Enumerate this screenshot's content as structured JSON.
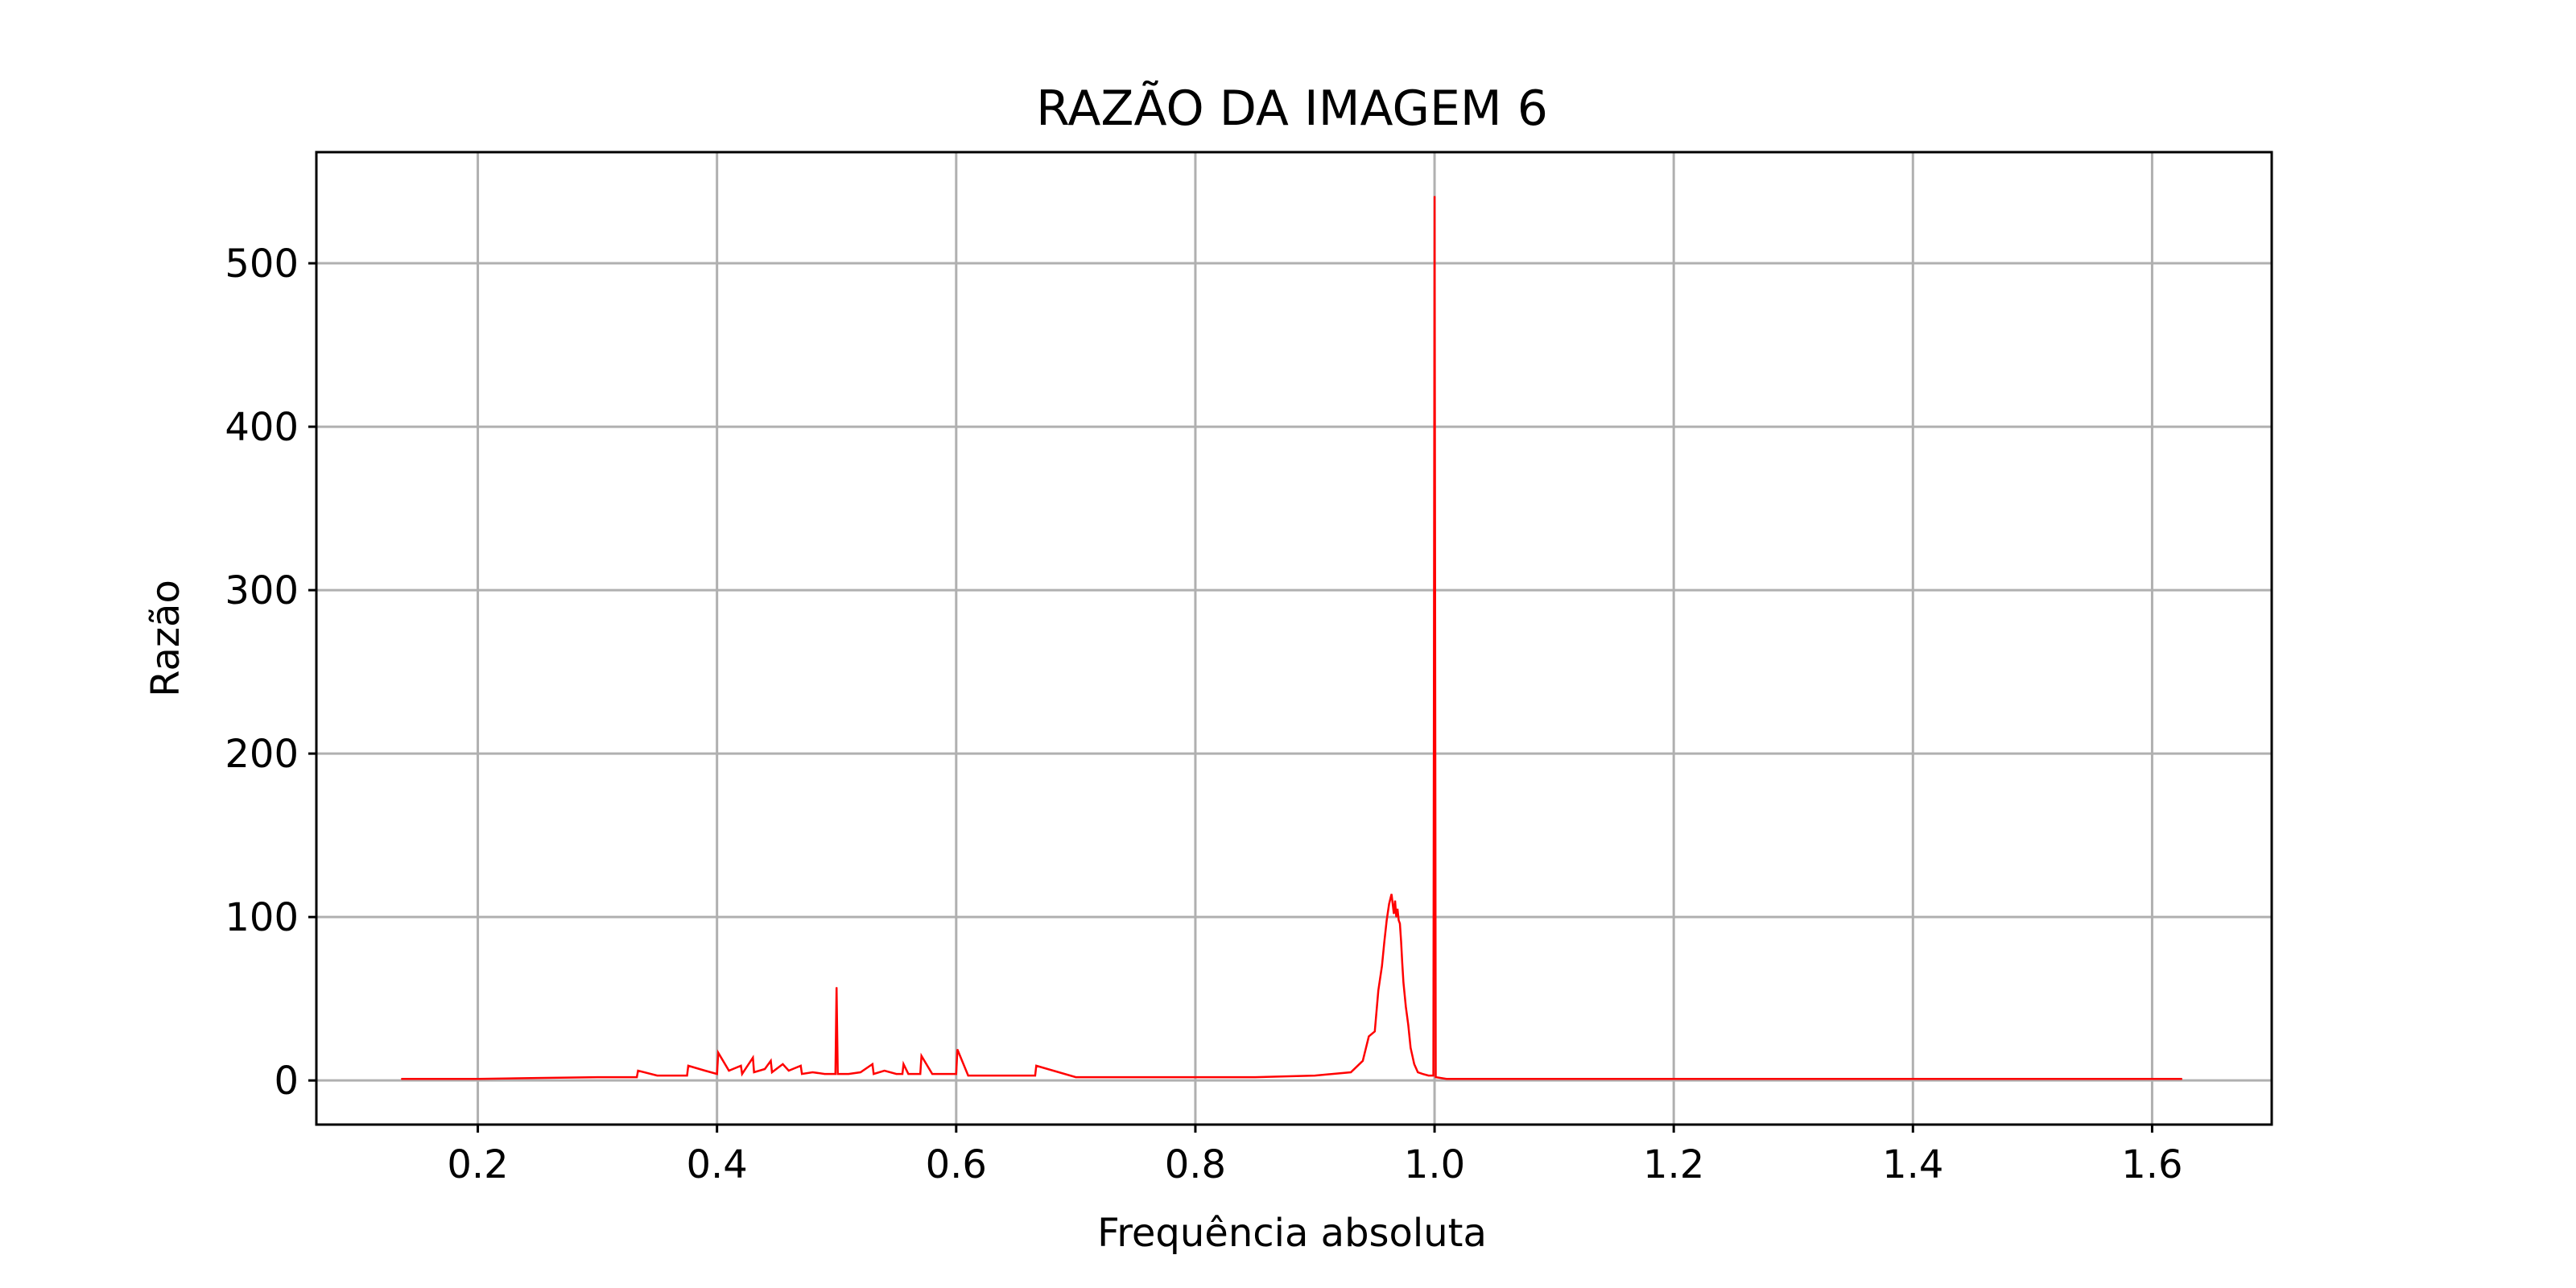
{
  "chart_data": {
    "type": "line",
    "title": "RAZÃO DA IMAGEM 6",
    "xlabel": "Frequência absoluta",
    "ylabel": "Razão",
    "xlim": [
      0.065,
      1.7
    ],
    "ylim": [
      -27,
      568
    ],
    "xticks": [
      0.2,
      0.4,
      0.6,
      0.8,
      1.0,
      1.2,
      1.4,
      1.6
    ],
    "xtick_labels": [
      "0.2",
      "0.4",
      "0.6",
      "0.8",
      "1.0",
      "1.2",
      "1.4",
      "1.6"
    ],
    "yticks": [
      0,
      100,
      200,
      300,
      400,
      500
    ],
    "ytick_labels": [
      "0",
      "100",
      "200",
      "300",
      "400",
      "500"
    ],
    "grid": true,
    "series_color": "#ff0000",
    "series": [
      {
        "x": [
          0.136,
          0.2,
          0.25,
          0.3,
          0.333,
          0.334,
          0.35,
          0.375,
          0.376,
          0.39,
          0.4,
          0.401,
          0.41,
          0.42,
          0.421,
          0.43,
          0.431,
          0.44,
          0.445,
          0.446,
          0.455,
          0.46,
          0.47,
          0.471,
          0.48,
          0.49,
          0.499,
          0.5,
          0.501,
          0.51,
          0.52,
          0.53,
          0.531,
          0.54,
          0.55,
          0.555,
          0.556,
          0.56,
          0.57,
          0.571,
          0.58,
          0.59,
          0.6,
          0.601,
          0.61,
          0.63,
          0.666,
          0.667,
          0.7,
          0.75,
          0.8,
          0.85,
          0.9,
          0.93,
          0.94,
          0.945,
          0.95,
          0.953,
          0.956,
          0.958,
          0.96,
          0.962,
          0.964,
          0.966,
          0.967,
          0.968,
          0.969,
          0.97,
          0.971,
          0.972,
          0.973,
          0.974,
          0.976,
          0.978,
          0.98,
          0.983,
          0.986,
          0.99,
          0.995,
          0.999,
          1.0,
          1.001,
          1.01,
          1.1,
          1.3,
          1.5,
          1.625
        ],
        "y": [
          1,
          1,
          1.5,
          2,
          2,
          6,
          3,
          3,
          9,
          6,
          4,
          17,
          6,
          9,
          4,
          14,
          5,
          7,
          12,
          5,
          10,
          6,
          9,
          4,
          5,
          4,
          4,
          57,
          4,
          4,
          5,
          10,
          4,
          6,
          4,
          4,
          10,
          4,
          4,
          15,
          4,
          4,
          4,
          19,
          3,
          3,
          3,
          9,
          2,
          2,
          2,
          2,
          3,
          5,
          12,
          27,
          30,
          55,
          70,
          85,
          98,
          108,
          114,
          102,
          110,
          100,
          105,
          98,
          96,
          85,
          72,
          60,
          45,
          34,
          20,
          10,
          5,
          4,
          3,
          3,
          541,
          2,
          1,
          1,
          1,
          1,
          1
        ]
      }
    ]
  }
}
